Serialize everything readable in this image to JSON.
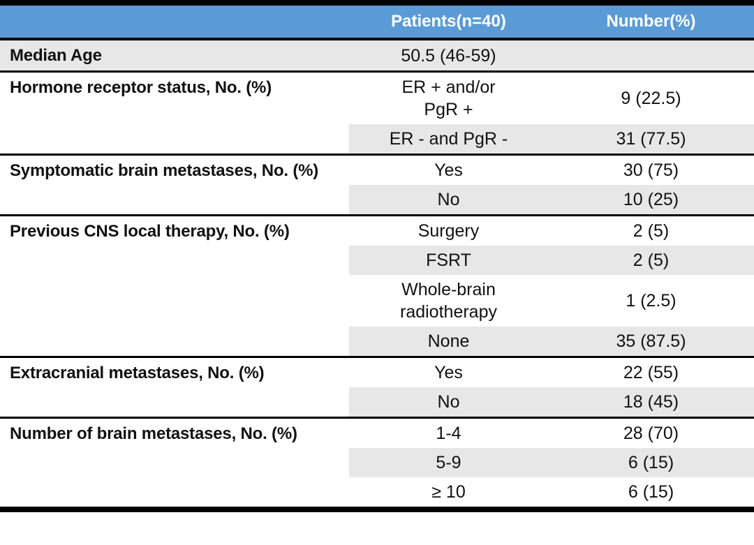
{
  "header": {
    "patients_label": "Patients(n=40)",
    "number_label": "Number(%)"
  },
  "colors": {
    "header_bg": "#5B9BD5",
    "header_text": "#FFFFFF",
    "row_shade": "#E8E7E7",
    "border": "#000000"
  },
  "groups": [
    {
      "label": "Median Age",
      "label_shaded": true,
      "entries": [
        {
          "value": "50.5 (46-59)",
          "number": "",
          "shaded": true
        }
      ]
    },
    {
      "label": "Hormone receptor status, No. (%)",
      "label_shaded": false,
      "entries": [
        {
          "value": "ER + and/or\nPgR +",
          "number": "9 (22.5)",
          "shaded": false
        },
        {
          "value": "ER - and PgR -",
          "number": "31 (77.5)",
          "shaded": true
        }
      ]
    },
    {
      "label": "Symptomatic brain metastases, No. (%)",
      "label_shaded": false,
      "entries": [
        {
          "value": "Yes",
          "number": "30 (75)",
          "shaded": false
        },
        {
          "value": "No",
          "number": "10 (25)",
          "shaded": true
        }
      ]
    },
    {
      "label": "Previous CNS local therapy, No. (%)",
      "label_shaded": false,
      "entries": [
        {
          "value": "Surgery",
          "number": "2 (5)",
          "shaded": false
        },
        {
          "value": "FSRT",
          "number": "2 (5)",
          "shaded": true
        },
        {
          "value": "Whole-brain\nradiotherapy",
          "number": "1 (2.5)",
          "shaded": false
        },
        {
          "value": "None",
          "number": "35 (87.5)",
          "shaded": true
        }
      ]
    },
    {
      "label": "Extracranial metastases, No. (%)",
      "label_shaded": false,
      "entries": [
        {
          "value": "Yes",
          "number": "22 (55)",
          "shaded": false
        },
        {
          "value": "No",
          "number": "18 (45)",
          "shaded": true
        }
      ]
    },
    {
      "label": "Number of brain metastases, No. (%)",
      "label_shaded": false,
      "entries": [
        {
          "value": "1-4",
          "number": "28 (70)",
          "shaded": false
        },
        {
          "value": "5-9",
          "number": "6 (15)",
          "shaded": true
        },
        {
          "value": "≥ 10",
          "number": "6 (15)",
          "shaded": false
        }
      ]
    }
  ],
  "chart_data": {
    "type": "table",
    "columns": [
      "",
      "Patients(n=40)",
      "Number(%)"
    ],
    "rows": [
      [
        "Median Age",
        "50.5 (46-59)",
        ""
      ],
      [
        "Hormone receptor status, No. (%)",
        "ER + and/or PgR +",
        "9 (22.5)"
      ],
      [
        "",
        "ER - and PgR -",
        "31 (77.5)"
      ],
      [
        "Symptomatic brain metastases, No. (%)",
        "Yes",
        "30 (75)"
      ],
      [
        "",
        "No",
        "10 (25)"
      ],
      [
        "Previous CNS local therapy, No. (%)",
        "Surgery",
        "2 (5)"
      ],
      [
        "",
        "FSRT",
        "2 (5)"
      ],
      [
        "",
        "Whole-brain radiotherapy",
        "1 (2.5)"
      ],
      [
        "",
        "None",
        "35 (87.5)"
      ],
      [
        "Extracranial metastases, No. (%)",
        "Yes",
        "22 (55)"
      ],
      [
        "",
        "No",
        "18 (45)"
      ],
      [
        "Number of brain metastases, No. (%)",
        "1-4",
        "28 (70)"
      ],
      [
        "",
        "5-9",
        "6 (15)"
      ],
      [
        "",
        "≥ 10",
        "6 (15)"
      ]
    ]
  }
}
